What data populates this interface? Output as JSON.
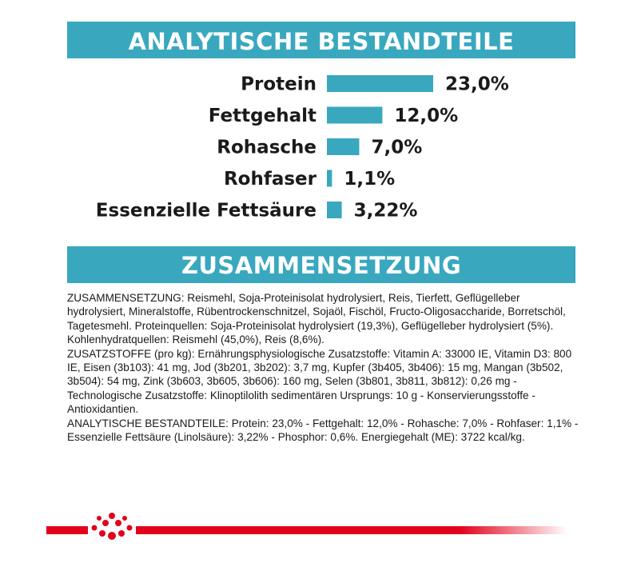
{
  "sections": {
    "analytics_title": "ANALYTISCHE BESTANDTEILE",
    "composition_title": "ZUSAMMENSETZUNG"
  },
  "chart_data": {
    "type": "bar",
    "orientation": "horizontal",
    "title": "ANALYTISCHE BESTANDTEILE",
    "categories": [
      "Protein",
      "Fettgehalt",
      "Rohasche",
      "Rohfaser",
      "Essenzielle Fettsäure"
    ],
    "values": [
      23.0,
      12.0,
      7.0,
      1.1,
      3.22
    ],
    "value_labels": [
      "23,0%",
      "12,0%",
      "7,0%",
      "1,1%",
      "3,22%"
    ],
    "unit": "%",
    "bar_color": "#39a8bf",
    "grid": false,
    "legend": "none"
  },
  "composition": {
    "paragraphs": [
      "ZUSAMMENSETZUNG: Reismehl, Soja-Proteinisolat hydrolysiert, Reis, Tierfett, Geflügelleber hydrolysiert, Mineralstoffe, Rübentrockenschnitzel, Sojaöl, Fischöl, Fructo-Oligosaccharide, Borretschöl, Tagetesmehl. Proteinquellen: Soja-Proteinisolat hydrolysiert (19,3%), Geflügelleber hydrolysiert (5%). Kohlenhydratquellen: Reismehl (45,0%), Reis (8,6%).",
      "ZUSATZSTOFFE (pro kg): Ernährungsphysiologische Zusatzstoffe: Vitamin A: 33000 IE, Vitamin D3: 800 IE, Eisen (3b103): 41 mg, Jod (3b201, 3b202): 3,7 mg, Kupfer (3b405, 3b406): 15 mg, Mangan (3b502, 3b504): 54 mg, Zink (3b603, 3b605, 3b606): 160 mg, Selen (3b801, 3b811, 3b812): 0,26 mg - Technologische Zusatzstoffe: Klinoptilolith sedimentären Ursprungs: 10 g - Konservierungsstoffe - Antioxidantien.",
      "ANALYTISCHE BESTANDTEILE: Protein: 23,0% - Fettgehalt: 12,0% - Rohasche: 7,0% - Rohfaser: 1,1% - Essenzielle Fettsäure (Linolsäure): 3,22% - Phosphor: 0,6%. Energiegehalt (ME): 3722 kcal/kg."
    ]
  },
  "brand": {
    "logo_icon": "crown-icon",
    "primary_color": "#e2001a",
    "accent_color": "#39a8bf"
  }
}
